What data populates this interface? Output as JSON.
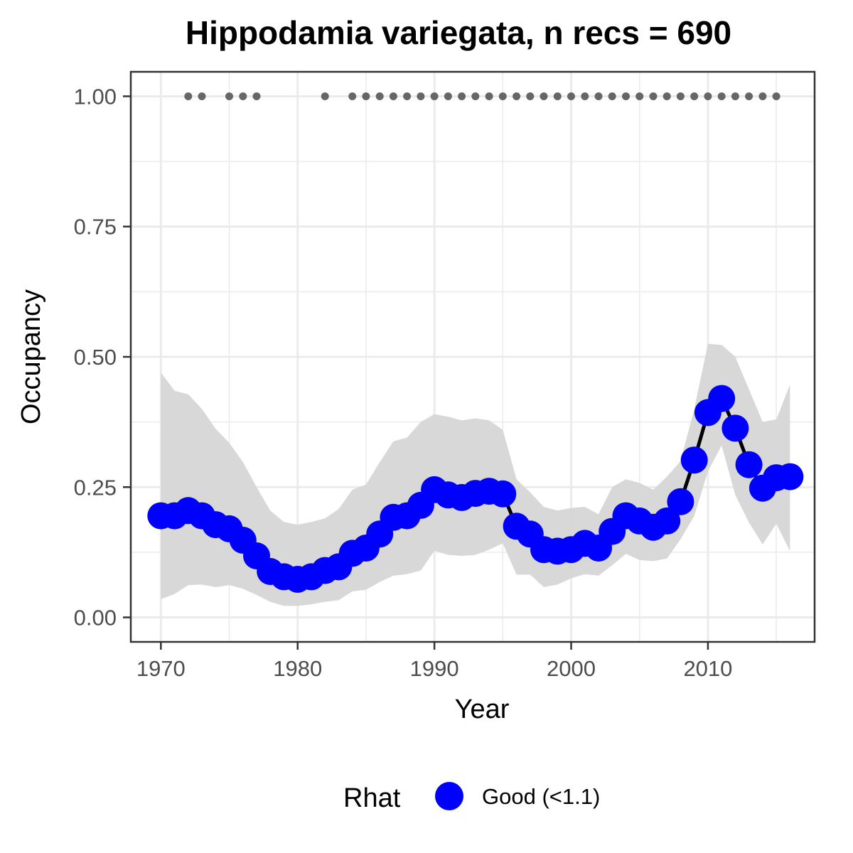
{
  "chart_data": {
    "type": "line",
    "title": "Hippodamia variegata, n recs = 690",
    "xlabel": "Year",
    "ylabel": "Occupancy",
    "xlim": [
      1967.8,
      2017.8
    ],
    "ylim": [
      -0.047,
      1.047
    ],
    "x_ticks": [
      1970,
      1980,
      1990,
      2000,
      2010
    ],
    "x_tick_labels": [
      "1970",
      "1980",
      "1990",
      "2000",
      "2010"
    ],
    "y_ticks": [
      0,
      0.25,
      0.5,
      0.75,
      1.0
    ],
    "y_tick_labels": [
      "0.00",
      "0.25",
      "0.50",
      "0.75",
      "1.00"
    ],
    "grid": true,
    "legend": {
      "title": "Rhat",
      "position": "bottom",
      "entries": [
        {
          "label": "Good (<1.1)",
          "color": "#0000ff"
        }
      ]
    },
    "x": [
      1970,
      1971,
      1972,
      1973,
      1974,
      1975,
      1976,
      1977,
      1978,
      1979,
      1980,
      1981,
      1982,
      1983,
      1984,
      1985,
      1986,
      1987,
      1988,
      1989,
      1990,
      1991,
      1992,
      1993,
      1994,
      1995,
      1996,
      1997,
      1998,
      1999,
      2000,
      2001,
      2002,
      2003,
      2004,
      2005,
      2006,
      2007,
      2008,
      2009,
      2010,
      2011,
      2012,
      2013,
      2014,
      2015,
      2016
    ],
    "series": [
      {
        "name": "Good (<1.1)",
        "color": "#0000ff",
        "values": [
          0.195,
          0.195,
          0.205,
          0.195,
          0.178,
          0.17,
          0.148,
          0.118,
          0.088,
          0.078,
          0.073,
          0.078,
          0.09,
          0.097,
          0.123,
          0.133,
          0.16,
          0.192,
          0.195,
          0.215,
          0.245,
          0.235,
          0.23,
          0.238,
          0.242,
          0.237,
          0.175,
          0.16,
          0.13,
          0.127,
          0.13,
          0.142,
          0.133,
          0.165,
          0.195,
          0.185,
          0.173,
          0.185,
          0.222,
          0.302,
          0.393,
          0.42,
          0.363,
          0.293,
          0.248,
          0.268,
          0.27
        ]
      }
    ],
    "ci_lower": [
      0.035,
      0.045,
      0.062,
      0.063,
      0.058,
      0.062,
      0.055,
      0.043,
      0.03,
      0.022,
      0.022,
      0.025,
      0.03,
      0.033,
      0.05,
      0.053,
      0.068,
      0.08,
      0.083,
      0.09,
      0.128,
      0.12,
      0.118,
      0.12,
      0.13,
      0.142,
      0.082,
      0.082,
      0.058,
      0.063,
      0.075,
      0.083,
      0.08,
      0.1,
      0.122,
      0.11,
      0.108,
      0.113,
      0.15,
      0.195,
      0.28,
      0.33,
      0.235,
      0.182,
      0.14,
      0.18,
      0.127
    ],
    "ci_upper": [
      0.47,
      0.435,
      0.428,
      0.4,
      0.362,
      0.335,
      0.298,
      0.25,
      0.205,
      0.183,
      0.178,
      0.183,
      0.19,
      0.208,
      0.245,
      0.255,
      0.298,
      0.338,
      0.345,
      0.375,
      0.39,
      0.385,
      0.378,
      0.382,
      0.378,
      0.36,
      0.265,
      0.24,
      0.212,
      0.205,
      0.21,
      0.212,
      0.198,
      0.25,
      0.265,
      0.258,
      0.245,
      0.27,
      0.3,
      0.4,
      0.525,
      0.523,
      0.5,
      0.438,
      0.375,
      0.38,
      0.447
    ],
    "record_years": [
      1972,
      1973,
      1975,
      1976,
      1977,
      1982,
      1984,
      1985,
      1986,
      1987,
      1988,
      1989,
      1990,
      1991,
      1992,
      1993,
      1994,
      1995,
      1996,
      1997,
      1998,
      1999,
      2000,
      2001,
      2002,
      2003,
      2004,
      2005,
      2006,
      2007,
      2008,
      2009,
      2010,
      2011,
      2012,
      2013,
      2014,
      2015
    ],
    "record_value": 1.0,
    "colors": {
      "ci_band": "#d6d6d6",
      "trend_line": "#000000",
      "record_points": "#666666",
      "grid": "#ebebeb",
      "panel_border": "#333333"
    }
  }
}
